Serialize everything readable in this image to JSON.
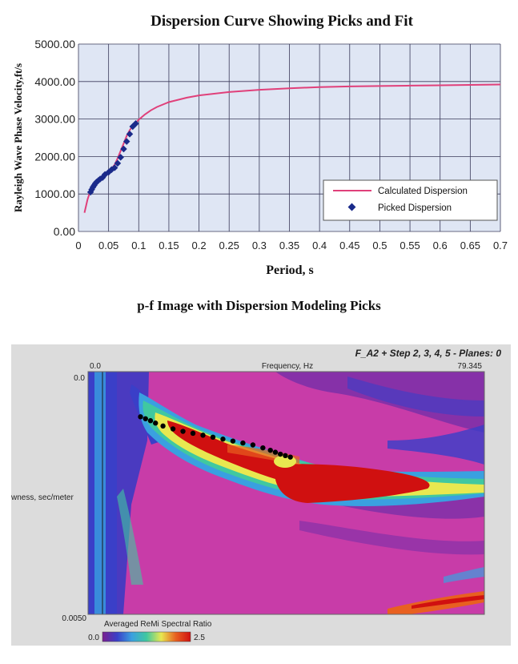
{
  "chart_data": [
    {
      "type": "line",
      "title": "Dispersion Curve Showing Picks and Fit",
      "xlabel": "Period, s",
      "ylabel": "Rayleigh Wave Phase Velocity,ft/s",
      "xlim": [
        0,
        0.7
      ],
      "ylim": [
        0,
        5000
      ],
      "x_ticks": [
        "0",
        "0.05",
        "0.1",
        "0.15",
        "0.2",
        "0.25",
        "0.3",
        "0.35",
        "0.4",
        "0.45",
        "0.5",
        "0.55",
        "0.6",
        "0.65",
        "0.7"
      ],
      "y_ticks": [
        "0.00",
        "1000.00",
        "2000.00",
        "3000.00",
        "4000.00",
        "5000.00"
      ],
      "grid": true,
      "legend_position": "bottom-right",
      "series": [
        {
          "name": "Calculated Dispersion",
          "kind": "line",
          "color": "#e0407a",
          "x": [
            0.01,
            0.015,
            0.02,
            0.025,
            0.03,
            0.035,
            0.04,
            0.045,
            0.05,
            0.055,
            0.06,
            0.065,
            0.07,
            0.075,
            0.08,
            0.085,
            0.09,
            0.095,
            0.1,
            0.11,
            0.12,
            0.13,
            0.15,
            0.18,
            0.2,
            0.25,
            0.3,
            0.35,
            0.4,
            0.45,
            0.5,
            0.55,
            0.6,
            0.65,
            0.7
          ],
          "y": [
            500,
            850,
            1100,
            1250,
            1350,
            1420,
            1480,
            1540,
            1600,
            1680,
            1780,
            1950,
            2150,
            2350,
            2550,
            2700,
            2820,
            2900,
            2980,
            3120,
            3230,
            3320,
            3450,
            3570,
            3630,
            3720,
            3780,
            3820,
            3850,
            3870,
            3880,
            3890,
            3900,
            3910,
            3920
          ]
        },
        {
          "name": "Picked Dispersion",
          "kind": "scatter",
          "color": "#1a2a8a",
          "x": [
            0.02,
            0.022,
            0.024,
            0.026,
            0.028,
            0.03,
            0.033,
            0.036,
            0.04,
            0.044,
            0.05,
            0.055,
            0.06,
            0.065,
            0.07,
            0.075,
            0.08,
            0.085,
            0.09,
            0.095
          ],
          "y": [
            1050,
            1120,
            1180,
            1230,
            1280,
            1320,
            1360,
            1400,
            1440,
            1520,
            1580,
            1650,
            1700,
            1820,
            1980,
            2200,
            2400,
            2600,
            2800,
            2880
          ]
        }
      ]
    },
    {
      "type": "heatmap",
      "title": "p-f Image with Dispersion Modeling Picks",
      "header_text": "F_A2 + Step 2, 3, 4, 5 - Planes: 0",
      "xlabel": "Frequency, Hz",
      "ylabel": "Slowness, sec/meter",
      "ylabel_visible": "wness, sec/meter",
      "xlim": [
        0.0,
        79.345
      ],
      "ylim": [
        0.0,
        0.005
      ],
      "x_tick_labels": [
        "0.0",
        "79.345"
      ],
      "y_tick_labels": [
        "0.0",
        "0.0050"
      ],
      "colorbar": {
        "label": "Averaged ReMi Spectral Ratio",
        "min_label": "0.0",
        "max_label": "2.5",
        "colors": [
          "#7a1f8f",
          "#3a3fc8",
          "#3aa0e0",
          "#40c8a0",
          "#e8e850",
          "#e86020",
          "#d01010"
        ]
      },
      "picks": {
        "frequency": [
          10.5,
          11.5,
          12.5,
          13.5,
          15,
          17,
          19,
          21,
          23,
          25,
          27,
          29,
          31,
          33,
          35,
          36.5,
          37.5,
          38.5,
          39.5,
          40.5
        ],
        "slowness": [
          0.00093,
          0.00097,
          0.00101,
          0.00106,
          0.00112,
          0.00118,
          0.00123,
          0.00127,
          0.00131,
          0.00135,
          0.00139,
          0.00143,
          0.00147,
          0.00151,
          0.00157,
          0.00162,
          0.00166,
          0.0017,
          0.00173,
          0.00176
        ]
      }
    }
  ]
}
